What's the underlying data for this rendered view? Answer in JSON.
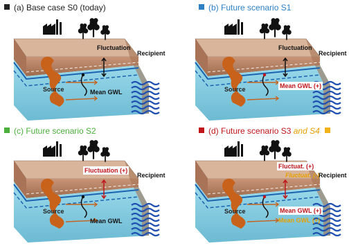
{
  "panels": [
    {
      "title": "(a)  Base case S0 (today)",
      "title_color": "#222222",
      "square_color": "#222222",
      "fluct": "Fluctuation",
      "gwl": "Mean GWL",
      "source": "Source",
      "recipient": "Recipient"
    },
    {
      "title": "(b)  Future scenario S1",
      "title_color": "#2f7fc4",
      "square_color": "#2f7fc4",
      "fluct": "Fluctuation",
      "gwl": "Mean GWL (+)",
      "source": "Source",
      "recipient": "Recipient"
    },
    {
      "title": "(c)  Future scenario S2",
      "title_color": "#4caf3d",
      "square_color": "#4caf3d",
      "fluct": "Fluctuation (+)",
      "gwl": "Mean GWL",
      "source": "Source",
      "recipient": "Recipient"
    },
    {
      "title": "(d)  Future scenario S3",
      "title_suffix": "and S4",
      "title_color": "#c0161b",
      "suffix_color": "#e8a000",
      "square_color": "#c0161b",
      "square2_color": "#f2b21a",
      "fluct": "Fluctuat. (+)",
      "fluct2": "Fluctuat. (-)",
      "gwl": "Mean GWL (+)",
      "gwl2": "Mean GWL (+)",
      "source": "Source",
      "recipient": "Recipient"
    }
  ],
  "colors": {
    "soil": "#b07a55",
    "water": "#8fd3e6",
    "plume": "#c8621b",
    "gwl_line": "#1b64b0",
    "red": "#c0161b",
    "orange": "#e8a000",
    "sea": "#1f4fb0"
  }
}
